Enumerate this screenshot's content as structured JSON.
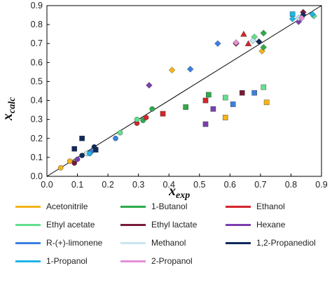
{
  "chart_data": {
    "type": "scatter",
    "title": "",
    "xlabel": "x",
    "xlabel_sub": "exp",
    "ylabel": "x",
    "ylabel_sub": "calc",
    "xlim": [
      0,
      0.9
    ],
    "ylim": [
      0,
      0.9
    ],
    "xticks": [
      "0.0",
      "0.1",
      "0.2",
      "0.3",
      "0.4",
      "0.5",
      "0.6",
      "0.7",
      "0.8",
      "0.9"
    ],
    "yticks": [
      "0.0",
      "0.1",
      "0.2",
      "0.3",
      "0.4",
      "0.5",
      "0.6",
      "0.7",
      "0.8",
      "0.9"
    ],
    "reference_line": "y = x",
    "legend_position": "below",
    "series": [
      {
        "name": "Acetonitrile",
        "color": "#F5B417",
        "circles": [
          [
            0.045,
            0.045
          ],
          [
            0.075,
            0.08
          ]
        ],
        "squares": [
          [
            0.585,
            0.31
          ],
          [
            0.72,
            0.39
          ]
        ],
        "diamonds": [
          [
            0.41,
            0.56
          ],
          [
            0.705,
            0.66
          ]
        ]
      },
      {
        "name": "1-Butanol",
        "color": "#2DAA4B",
        "circles": [
          [
            0.315,
            0.295
          ],
          [
            0.345,
            0.355
          ]
        ],
        "squares": [
          [
            0.455,
            0.365
          ],
          [
            0.53,
            0.43
          ]
        ],
        "diamonds": [
          [
            0.71,
            0.68
          ],
          [
            0.71,
            0.755
          ]
        ]
      },
      {
        "name": "Ethanol",
        "color": "#D3262A",
        "circles": [
          [
            0.295,
            0.28
          ],
          [
            0.325,
            0.31
          ]
        ],
        "squares": [
          [
            0.38,
            0.33
          ],
          [
            0.52,
            0.4
          ]
        ],
        "triangles": [
          [
            0.645,
            0.75
          ],
          [
            0.66,
            0.7
          ]
        ]
      },
      {
        "name": "Ethyl acetate",
        "color": "#61E08F",
        "circles": [
          [
            0.24,
            0.23
          ],
          [
            0.295,
            0.3
          ]
        ],
        "squares": [
          [
            0.585,
            0.415
          ],
          [
            0.71,
            0.47
          ]
        ],
        "diamonds": [
          [
            0.68,
            0.735
          ],
          [
            0.875,
            0.845
          ]
        ]
      },
      {
        "name": "Ethyl lactate",
        "color": "#7A1A3A",
        "circles": [
          [
            0.09,
            0.07
          ]
        ],
        "squares": [
          [
            0.64,
            0.44
          ]
        ],
        "diamonds": [
          [
            0.62,
            0.7
          ],
          [
            0.84,
            0.865
          ]
        ]
      },
      {
        "name": "Hexane",
        "color": "#7B3FB0",
        "circles": [
          [
            0.1,
            0.09
          ]
        ],
        "squares": [
          [
            0.52,
            0.275
          ],
          [
            0.545,
            0.355
          ]
        ],
        "diamonds": [
          [
            0.335,
            0.48
          ],
          [
            0.825,
            0.815
          ]
        ]
      },
      {
        "name": "R-(+)-limonene",
        "color": "#3B7FE0",
        "circles": [
          [
            0.145,
            0.13
          ],
          [
            0.225,
            0.2
          ]
        ],
        "squares": [
          [
            0.61,
            0.38
          ],
          [
            0.68,
            0.44
          ]
        ],
        "diamonds": [
          [
            0.47,
            0.565
          ],
          [
            0.56,
            0.7
          ]
        ]
      },
      {
        "name": "Methanol",
        "color": "#C9E5F2",
        "circles": [
          [
            0.13,
            0.12
          ]
        ],
        "squares": [],
        "diamonds": [
          [
            0.675,
            0.715
          ],
          [
            0.825,
            0.835
          ]
        ]
      },
      {
        "name": "1,2-Propanediol",
        "color": "#0F2A5C",
        "circles": [
          [
            0.155,
            0.155
          ],
          [
            0.115,
            0.11
          ]
        ],
        "squares": [
          [
            0.09,
            0.145
          ],
          [
            0.115,
            0.2
          ],
          [
            0.16,
            0.14
          ]
        ],
        "diamonds": [
          [
            0.695,
            0.71
          ],
          [
            0.84,
            0.85
          ]
        ]
      },
      {
        "name": "1-Propanol",
        "color": "#20B4E6",
        "circles": [
          [
            0.14,
            0.12
          ]
        ],
        "squares": [
          [
            0.805,
            0.855
          ]
        ],
        "diamonds": [
          [
            0.805,
            0.83
          ],
          [
            0.87,
            0.855
          ]
        ]
      },
      {
        "name": "2-Propanol",
        "color": "#E48FD8",
        "circles": [],
        "squares": [],
        "diamonds": [
          [
            0.62,
            0.705
          ],
          [
            0.835,
            0.835
          ]
        ]
      }
    ]
  }
}
